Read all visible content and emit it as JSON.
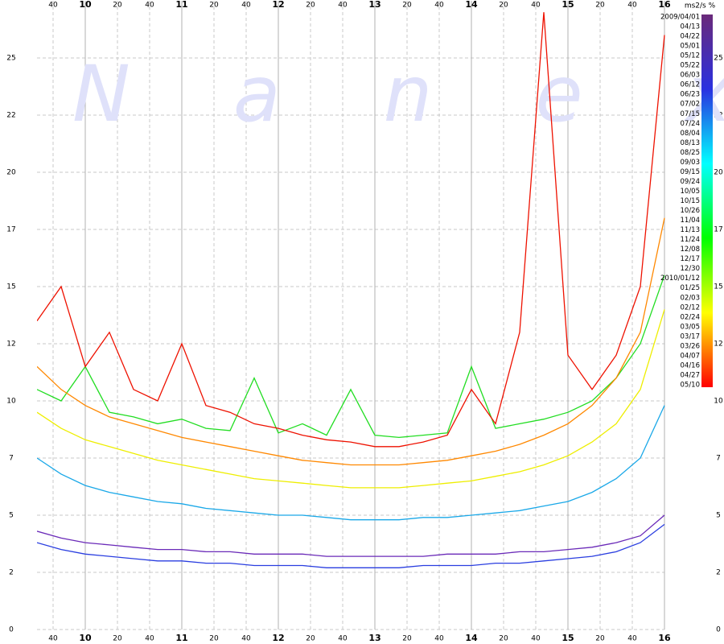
{
  "chart_data": {
    "type": "line",
    "watermark": "Nanex",
    "unit_label": "ms2/s %",
    "xlim": [
      570,
      960
    ],
    "xticks": [
      {
        "value": 580,
        "label": "40"
      },
      {
        "value": 600,
        "label": "10"
      },
      {
        "value": 620,
        "label": "20"
      },
      {
        "value": 640,
        "label": "40"
      },
      {
        "value": 660,
        "label": "11"
      },
      {
        "value": 680,
        "label": "20"
      },
      {
        "value": 700,
        "label": "40"
      },
      {
        "value": 720,
        "label": "12"
      },
      {
        "value": 740,
        "label": "20"
      },
      {
        "value": 760,
        "label": "40"
      },
      {
        "value": 780,
        "label": "13"
      },
      {
        "value": 800,
        "label": "20"
      },
      {
        "value": 820,
        "label": "40"
      },
      {
        "value": 840,
        "label": "14"
      },
      {
        "value": 860,
        "label": "20"
      },
      {
        "value": 880,
        "label": "40"
      },
      {
        "value": 900,
        "label": "15"
      },
      {
        "value": 920,
        "label": "20"
      },
      {
        "value": 940,
        "label": "40"
      },
      {
        "value": 960,
        "label": "16"
      }
    ],
    "ylim": [
      0,
      27.5
    ],
    "yticks": [
      0,
      {
        "value": 2.5,
        "label": "2"
      },
      5,
      {
        "value": 7.5,
        "label": "7"
      },
      10,
      {
        "value": 12.5,
        "label": "12"
      },
      15,
      {
        "value": 17.5,
        "label": "17"
      },
      20,
      {
        "value": 22.5,
        "label": "22"
      },
      25
    ],
    "grid": true,
    "x": [
      570,
      585,
      600,
      615,
      630,
      645,
      660,
      675,
      690,
      705,
      720,
      735,
      750,
      765,
      780,
      795,
      810,
      825,
      840,
      855,
      870,
      885,
      900,
      915,
      930,
      945,
      960
    ],
    "series": [
      {
        "color": "#6a2ab8",
        "values": [
          4.3,
          4.0,
          3.8,
          3.7,
          3.6,
          3.5,
          3.5,
          3.4,
          3.4,
          3.3,
          3.3,
          3.3,
          3.2,
          3.2,
          3.2,
          3.2,
          3.2,
          3.3,
          3.3,
          3.3,
          3.4,
          3.4,
          3.5,
          3.6,
          3.8,
          4.1,
          5.0
        ]
      },
      {
        "color": "#2a3ee0",
        "values": [
          3.8,
          3.5,
          3.3,
          3.2,
          3.1,
          3.0,
          3.0,
          2.9,
          2.9,
          2.8,
          2.8,
          2.8,
          2.7,
          2.7,
          2.7,
          2.7,
          2.8,
          2.8,
          2.8,
          2.9,
          2.9,
          3.0,
          3.1,
          3.2,
          3.4,
          3.8,
          4.6
        ]
      },
      {
        "color": "#1aa8e8",
        "values": [
          7.5,
          6.8,
          6.3,
          6.0,
          5.8,
          5.6,
          5.5,
          5.3,
          5.2,
          5.1,
          5.0,
          5.0,
          4.9,
          4.8,
          4.8,
          4.8,
          4.9,
          4.9,
          5.0,
          5.1,
          5.2,
          5.4,
          5.6,
          6.0,
          6.6,
          7.5,
          9.8
        ]
      },
      {
        "color": "#22dd22",
        "values": [
          10.5,
          10.0,
          11.5,
          9.5,
          9.3,
          9.0,
          9.2,
          8.8,
          8.7,
          11.0,
          8.6,
          9.0,
          8.5,
          10.5,
          8.5,
          8.4,
          8.5,
          8.6,
          11.5,
          8.8,
          9.0,
          9.2,
          9.5,
          10.0,
          11.0,
          12.5,
          15.5
        ]
      },
      {
        "color": "#eeee00",
        "values": [
          9.5,
          8.8,
          8.3,
          8.0,
          7.7,
          7.4,
          7.2,
          7.0,
          6.8,
          6.6,
          6.5,
          6.4,
          6.3,
          6.2,
          6.2,
          6.2,
          6.3,
          6.4,
          6.5,
          6.7,
          6.9,
          7.2,
          7.6,
          8.2,
          9.0,
          10.5,
          14.0
        ]
      },
      {
        "color": "#ff8800",
        "values": [
          11.5,
          10.5,
          9.8,
          9.3,
          9.0,
          8.7,
          8.4,
          8.2,
          8.0,
          7.8,
          7.6,
          7.4,
          7.3,
          7.2,
          7.2,
          7.2,
          7.3,
          7.4,
          7.6,
          7.8,
          8.1,
          8.5,
          9.0,
          9.8,
          11.0,
          13.0,
          18.0
        ]
      },
      {
        "color": "#ee1100",
        "values": [
          13.5,
          15.0,
          11.5,
          13.0,
          10.5,
          10.0,
          12.5,
          9.8,
          9.5,
          9.0,
          8.8,
          8.5,
          8.3,
          8.2,
          8.0,
          8.0,
          8.2,
          8.5,
          10.5,
          9.0,
          13.0,
          27.0,
          12.0,
          10.5,
          12.0,
          15.0,
          26.0
        ]
      }
    ],
    "colorbar": {
      "colors": [
        "#6a2a7a",
        "#2a30e0",
        "#00ffff",
        "#00ff00",
        "#ffff00",
        "#ff0000"
      ],
      "labels": [
        "2009/04/01",
        "04/13",
        "04/22",
        "05/01",
        "05/12",
        "05/22",
        "06/03",
        "06/12",
        "06/23",
        "07/02",
        "07/15",
        "07/24",
        "08/04",
        "08/13",
        "08/25",
        "09/03",
        "09/15",
        "09/24",
        "10/05",
        "10/15",
        "10/26",
        "11/04",
        "11/13",
        "11/24",
        "12/08",
        "12/17",
        "12/30",
        "2010/01/12",
        "01/25",
        "02/03",
        "02/12",
        "02/24",
        "03/05",
        "03/17",
        "03/26",
        "04/07",
        "04/16",
        "04/27",
        "05/10"
      ]
    }
  }
}
